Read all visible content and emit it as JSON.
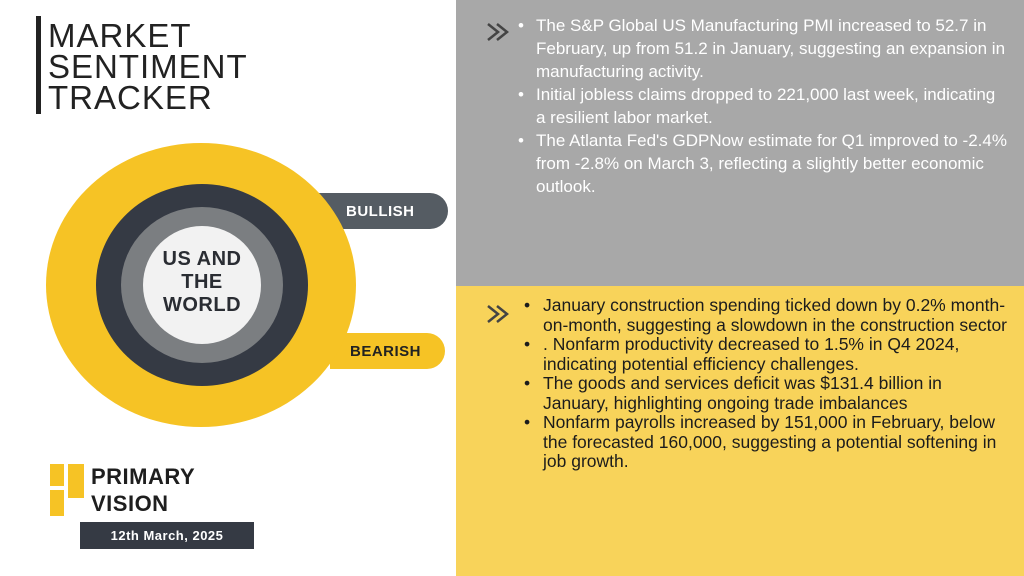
{
  "header": {
    "title_lines": [
      "MARKET",
      "SENTIMENT",
      "TRACKER"
    ]
  },
  "gauge": {
    "center_lines": [
      "US AND",
      "THE",
      "WORLD"
    ],
    "bullish_label": "BULLISH",
    "bearish_label": "BEARISH"
  },
  "brand": {
    "name_lines": [
      "PRIMARY",
      "VISION"
    ],
    "date": "12th March, 2025"
  },
  "bullish_points": [
    "The S&P Global US Manufacturing PMI increased to 52.7 in February, up from 51.2 in January, suggesting an expansion in manufacturing activity.",
    "Initial jobless claims dropped to 221,000 last week, indicating a resilient labor market.",
    "The Atlanta Fed's GDPNow estimate for Q1 improved to -2.4% from -2.8% on March 3, reflecting a slightly better economic outlook."
  ],
  "bearish_points": [
    " January construction spending ticked down by 0.2% month-on-month, suggesting a slowdown in the construction sector",
    ". Nonfarm productivity decreased to 1.5% in Q4 2024, indicating potential efficiency challenges.",
    "The goods and services deficit was $131.4 billion in January, highlighting ongoing trade imbalances",
    "Nonfarm payrolls increased by 151,000 in February, below the forecasted 160,000, suggesting a potential softening in job growth."
  ],
  "colors": {
    "accent_yellow": "#f6c325",
    "dark": "#353a44",
    "gray_panel": "#a8a8a8",
    "yellow_panel": "#f8d35a"
  },
  "icons": {
    "panel_marker": "double-chevron-right-icon"
  }
}
